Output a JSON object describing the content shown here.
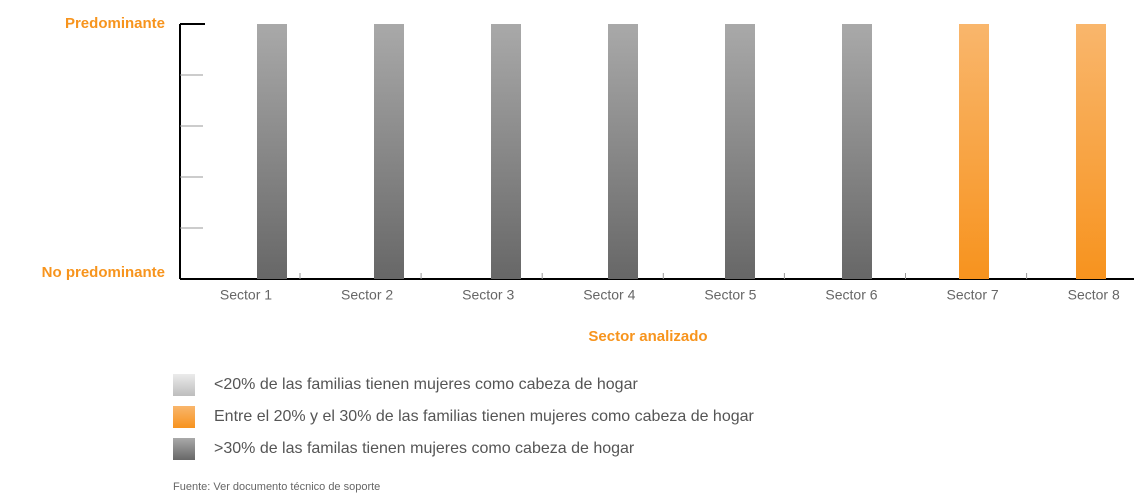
{
  "chart_data": {
    "type": "bar",
    "x_label": "Sector analizado",
    "categories": [
      "Sector 1",
      "Sector 2",
      "Sector 3",
      "Sector 4",
      "Sector 5",
      "Sector 6",
      "Sector 7",
      "Sector 8"
    ],
    "series": [
      {
        "name": "<20% de las familias tienen mujeres como cabeza de hogar",
        "colors": [
          "#ebebeb",
          "#bdbdbd"
        ],
        "values": [
          null,
          null,
          null,
          null,
          null,
          null,
          null,
          null
        ]
      },
      {
        "name": "Entre el 20% y el 30% de las familias tienen mujeres como cabeza de hogar",
        "colors": [
          "#f9b66c",
          "#f7931e"
        ],
        "values": [
          null,
          null,
          null,
          null,
          null,
          null,
          1,
          1
        ]
      },
      {
        "name": ">30% de las familas tienen mujeres como cabeza de hogar",
        "colors": [
          "#a9a9a9",
          "#676767"
        ],
        "values": [
          1,
          1,
          1,
          1,
          1,
          1,
          null,
          null
        ]
      }
    ],
    "ylim": [
      0,
      1
    ],
    "yticks": [
      {
        "value": 0,
        "label": "No predominante"
      },
      {
        "value": 1,
        "label": "Predominante"
      }
    ],
    "minor_yticks": [
      0.2,
      0.4,
      0.6,
      0.8
    ],
    "source": "Fuente: Ver documento técnico de soporte"
  }
}
